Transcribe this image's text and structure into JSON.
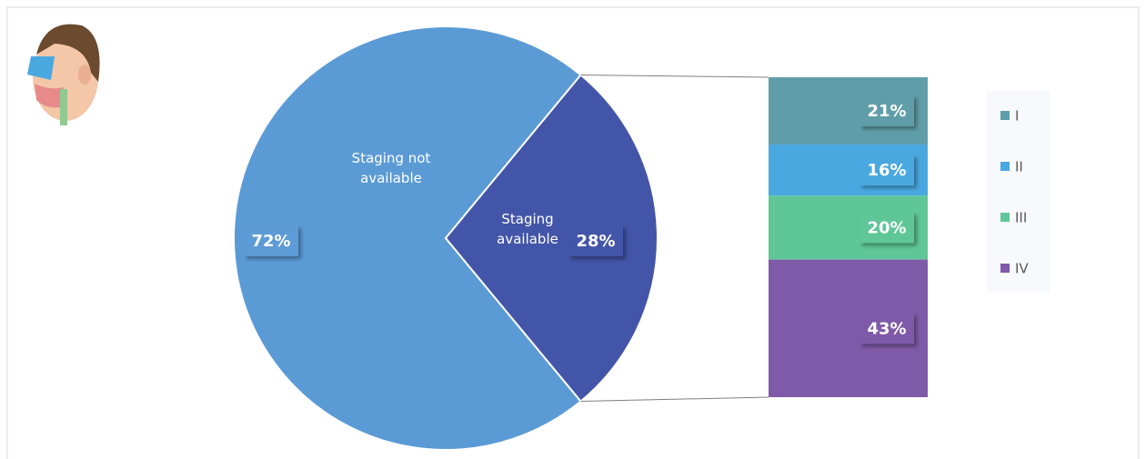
{
  "chart_data": {
    "type": "bar-of-pie",
    "pie": {
      "categories": [
        "Staging not available",
        "Staging available"
      ],
      "values": [
        72,
        28
      ],
      "value_labels": [
        "72%",
        "28%"
      ],
      "colors": [
        "#5b9bd5",
        "#4355a8"
      ]
    },
    "bar": {
      "series": [
        {
          "name": "I",
          "color": "#5f9ea8",
          "values": [
            21
          ],
          "value_labels": [
            "21%"
          ]
        },
        {
          "name": "II",
          "color": "#4aa8e0",
          "values": [
            16
          ],
          "value_labels": [
            "16%"
          ]
        },
        {
          "name": "III",
          "color": "#5ec698",
          "values": [
            20
          ],
          "value_labels": [
            "20%"
          ]
        },
        {
          "name": "IV",
          "color": "#7f5aa8",
          "values": [
            43
          ],
          "value_labels": [
            "43%"
          ]
        }
      ]
    },
    "legend": "right"
  }
}
